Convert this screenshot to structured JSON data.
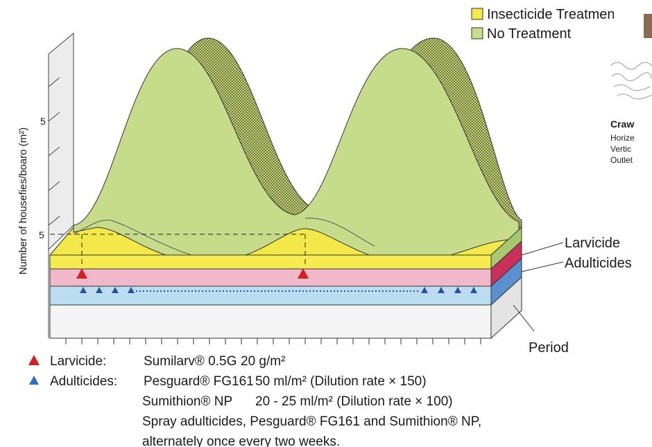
{
  "legend": {
    "items": [
      "Insecticide Treatment",
      "No Treatment"
    ]
  },
  "diagram": {
    "y_axis_label": "Number of housefies/boaro (m²)",
    "y_tick_labels": [
      "5",
      "5"
    ],
    "layer_labels": [
      "Larvicide",
      "Adulticides"
    ],
    "x_axis_label": "Period"
  },
  "notes": {
    "rows": [
      [
        "Larvicide:",
        "Sumilarv® 0.5G",
        "20 g/m²"
      ],
      [
        "Adulticides:",
        "Pesguard® FG161",
        "50 ml/m² (Dilution rate × 150)"
      ],
      [
        "Sumithion® NP",
        "20 - 25 ml/m² (Dilution rate × 100)"
      ],
      [
        "Spray adulticides, Pesguard® FG161 and Sumithion® NP,"
      ],
      [
        "alternately once every two weeks."
      ]
    ]
  },
  "side_panel": {
    "title": "Craw",
    "lines": [
      "Horize",
      "Vertic",
      "Outlet"
    ]
  }
}
